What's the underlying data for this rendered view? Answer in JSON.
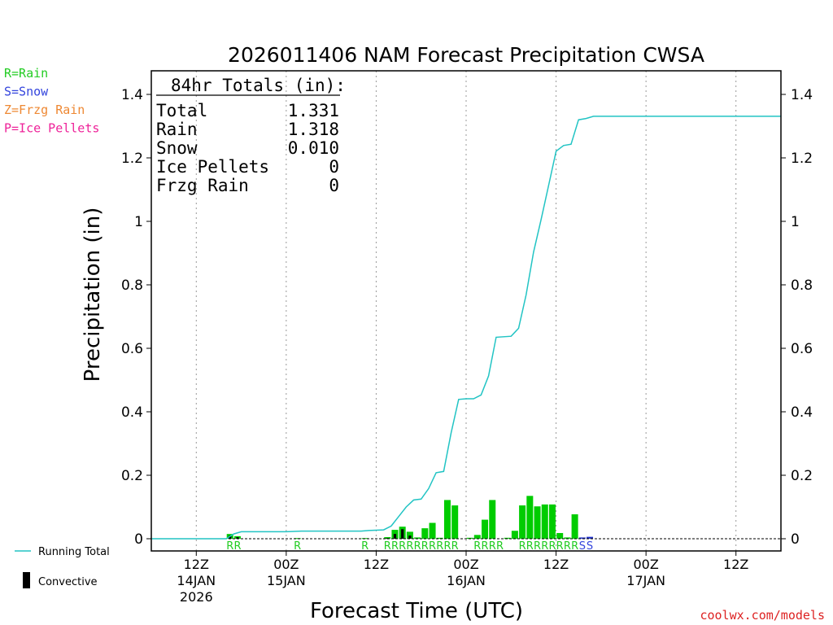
{
  "chart_data": {
    "type": "bar",
    "title": "2026011406 NAM Forecast Precipitation CWSA",
    "ylabel": "Precipitation (in)",
    "xlabel": "Forecast Time (UTC)",
    "ylim": [
      0,
      1.45
    ],
    "y_ticks": [
      0,
      0.2,
      0.4,
      0.6,
      0.8,
      1,
      1.2,
      1.4
    ],
    "y_tick_labels": [
      "0",
      "0.2",
      "0.4",
      "0.6",
      "0.8",
      "1",
      "1.2",
      "1.4"
    ],
    "x_range_hours": [
      0,
      84
    ],
    "x_ticks": [
      {
        "hour": 6,
        "line1": "12Z",
        "line2": "14JAN",
        "line3": "2026"
      },
      {
        "hour": 18,
        "line1": "00Z",
        "line2": "15JAN",
        "line3": ""
      },
      {
        "hour": 30,
        "line1": "12Z",
        "line2": "",
        "line3": ""
      },
      {
        "hour": 42,
        "line1": "00Z",
        "line2": "16JAN",
        "line3": ""
      },
      {
        "hour": 54,
        "line1": "12Z",
        "line2": "",
        "line3": ""
      },
      {
        "hour": 66,
        "line1": "00Z",
        "line2": "17JAN",
        "line3": ""
      },
      {
        "hour": 78,
        "line1": "12Z",
        "line2": "",
        "line3": ""
      }
    ],
    "totals": {
      "heading": "84hr Totals (in):",
      "rows": [
        {
          "label": "Total",
          "value": "1.331"
        },
        {
          "label": "Rain",
          "value": "1.318"
        },
        {
          "label": "Snow",
          "value": "0.010"
        },
        {
          "label": "Ice Pellets",
          "value": "0"
        },
        {
          "label": "Frzg Rain",
          "value": "0"
        }
      ]
    },
    "legend_types": [
      {
        "text": "R=Rain",
        "color": "#22cc22"
      },
      {
        "text": "S=Snow",
        "color": "#3344dd"
      },
      {
        "text": "Z=Frzg Rain",
        "color": "#ee8833"
      },
      {
        "text": "P=Ice Pellets",
        "color": "#ee2299"
      }
    ],
    "legend_series": [
      {
        "text": "Running Total",
        "color": "#22c4c4"
      },
      {
        "text": "Convective",
        "color": "#000000"
      }
    ],
    "precip_bars": [
      {
        "hour": 11,
        "value": 0.015,
        "type": "R",
        "convective": 0.01
      },
      {
        "hour": 12,
        "value": 0.008,
        "type": "R",
        "convective": 0.005
      },
      {
        "hour": 20,
        "value": 0.002,
        "type": "R",
        "convective": 0
      },
      {
        "hour": 29,
        "value": 0.002,
        "type": "R",
        "convective": 0
      },
      {
        "hour": 32,
        "value": 0.005,
        "type": "R",
        "convective": 0.002
      },
      {
        "hour": 33,
        "value": 0.028,
        "type": "R",
        "convective": 0.015
      },
      {
        "hour": 34,
        "value": 0.038,
        "type": "R",
        "convective": 0.03
      },
      {
        "hour": 35,
        "value": 0.022,
        "type": "R",
        "convective": 0.01
      },
      {
        "hour": 36,
        "value": 0.004,
        "type": "R",
        "convective": 0
      },
      {
        "hour": 37,
        "value": 0.033,
        "type": "R",
        "convective": 0
      },
      {
        "hour": 38,
        "value": 0.05,
        "type": "R",
        "convective": 0
      },
      {
        "hour": 39,
        "value": 0.003,
        "type": "R",
        "convective": 0
      },
      {
        "hour": 40,
        "value": 0.122,
        "type": "R",
        "convective": 0
      },
      {
        "hour": 41,
        "value": 0.105,
        "type": "R",
        "convective": 0
      },
      {
        "hour": 43,
        "value": 0.003,
        "type": "R",
        "convective": 0
      },
      {
        "hour": 44,
        "value": 0.012,
        "type": "R",
        "convective": 0
      },
      {
        "hour": 45,
        "value": 0.06,
        "type": "R",
        "convective": 0
      },
      {
        "hour": 46,
        "value": 0.122,
        "type": "R",
        "convective": 0
      },
      {
        "hour": 48,
        "value": 0.003,
        "type": "R",
        "convective": 0
      },
      {
        "hour": 49,
        "value": 0.025,
        "type": "R",
        "convective": 0
      },
      {
        "hour": 50,
        "value": 0.105,
        "type": "R",
        "convective": 0
      },
      {
        "hour": 51,
        "value": 0.135,
        "type": "R",
        "convective": 0
      },
      {
        "hour": 52,
        "value": 0.102,
        "type": "R",
        "convective": 0
      },
      {
        "hour": 53,
        "value": 0.108,
        "type": "R",
        "convective": 0
      },
      {
        "hour": 54,
        "value": 0.108,
        "type": "R",
        "convective": 0
      },
      {
        "hour": 55,
        "value": 0.018,
        "type": "R",
        "convective": 0
      },
      {
        "hour": 56,
        "value": 0.004,
        "type": "R",
        "convective": 0
      },
      {
        "hour": 57,
        "value": 0.077,
        "type": "R",
        "convective": 0
      },
      {
        "hour": 58,
        "value": 0.004,
        "type": "S",
        "convective": 0
      },
      {
        "hour": 59,
        "value": 0.006,
        "type": "S",
        "convective": 0
      }
    ],
    "type_labels": [
      {
        "hour": 11,
        "text": "R",
        "type": "R"
      },
      {
        "hour": 12,
        "text": "R",
        "type": "R"
      },
      {
        "hour": 20,
        "text": "R",
        "type": "R"
      },
      {
        "hour": 29,
        "text": "R",
        "type": "R"
      },
      {
        "hour": 32,
        "text": "R",
        "type": "R"
      },
      {
        "hour": 33,
        "text": "R",
        "type": "R"
      },
      {
        "hour": 34,
        "text": "R",
        "type": "R"
      },
      {
        "hour": 35,
        "text": "R",
        "type": "R"
      },
      {
        "hour": 36,
        "text": "R",
        "type": "R"
      },
      {
        "hour": 37,
        "text": "R",
        "type": "R"
      },
      {
        "hour": 38,
        "text": "R",
        "type": "R"
      },
      {
        "hour": 39,
        "text": "R",
        "type": "R"
      },
      {
        "hour": 40,
        "text": "R",
        "type": "R"
      },
      {
        "hour": 41,
        "text": "R",
        "type": "R"
      },
      {
        "hour": 44,
        "text": "R",
        "type": "R"
      },
      {
        "hour": 45,
        "text": "R",
        "type": "R"
      },
      {
        "hour": 46,
        "text": "R",
        "type": "R"
      },
      {
        "hour": 47,
        "text": "R",
        "type": "R"
      },
      {
        "hour": 50,
        "text": "R",
        "type": "R"
      },
      {
        "hour": 51,
        "text": "R",
        "type": "R"
      },
      {
        "hour": 52,
        "text": "R",
        "type": "R"
      },
      {
        "hour": 53,
        "text": "R",
        "type": "R"
      },
      {
        "hour": 54,
        "text": "R",
        "type": "R"
      },
      {
        "hour": 55,
        "text": "R",
        "type": "R"
      },
      {
        "hour": 56,
        "text": "R",
        "type": "R"
      },
      {
        "hour": 57,
        "text": "R",
        "type": "R"
      },
      {
        "hour": 58,
        "text": "S",
        "type": "S"
      },
      {
        "hour": 59,
        "text": "S",
        "type": "S"
      }
    ],
    "running_total": [
      [
        0,
        0
      ],
      [
        10,
        0
      ],
      [
        11,
        0.015
      ],
      [
        12,
        0.022
      ],
      [
        18,
        0.022
      ],
      [
        20,
        0.024
      ],
      [
        28,
        0.024
      ],
      [
        29,
        0.026
      ],
      [
        31,
        0.028
      ],
      [
        32,
        0.04
      ],
      [
        33,
        0.07
      ],
      [
        34,
        0.1
      ],
      [
        35,
        0.122
      ],
      [
        36,
        0.125
      ],
      [
        37,
        0.158
      ],
      [
        38,
        0.208
      ],
      [
        39,
        0.212
      ],
      [
        40,
        0.334
      ],
      [
        41,
        0.439
      ],
      [
        42,
        0.441
      ],
      [
        43,
        0.441
      ],
      [
        44,
        0.453
      ],
      [
        45,
        0.513
      ],
      [
        46,
        0.635
      ],
      [
        48,
        0.638
      ],
      [
        49,
        0.663
      ],
      [
        50,
        0.768
      ],
      [
        51,
        0.903
      ],
      [
        52,
        1.005
      ],
      [
        53,
        1.113
      ],
      [
        54,
        1.221
      ],
      [
        55,
        1.239
      ],
      [
        56,
        1.243
      ],
      [
        57,
        1.32
      ],
      [
        58,
        1.324
      ],
      [
        59,
        1.331
      ],
      [
        84,
        1.331
      ]
    ],
    "credit": "coolwx.com/models"
  }
}
